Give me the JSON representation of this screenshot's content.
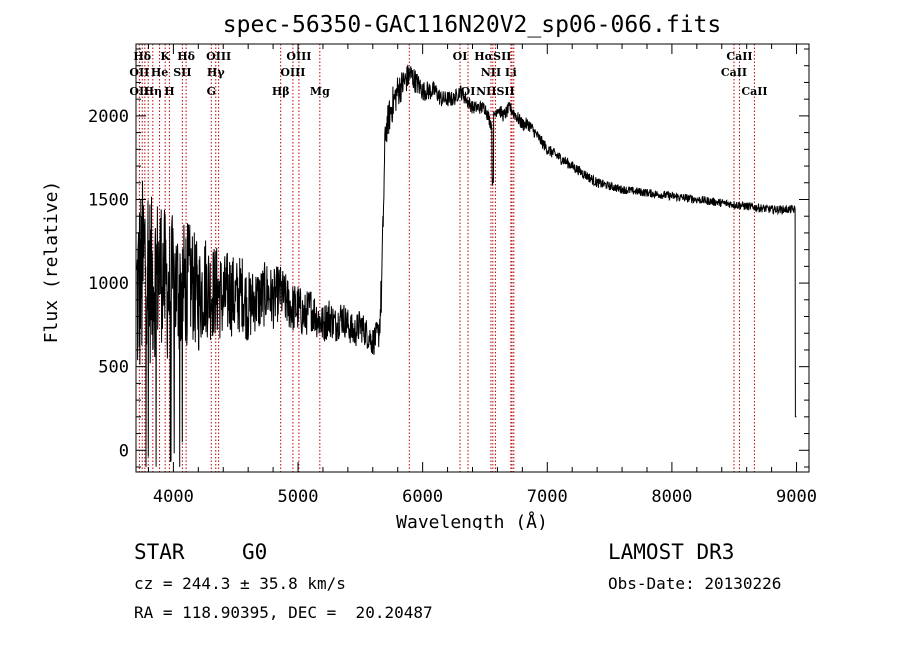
{
  "chart_data": {
    "type": "line",
    "title": "spec-56350-GAC116N20V2_sp06-066.fits",
    "xlabel": "Wavelength (Å)",
    "ylabel": "Flux (relative)",
    "xlim": [
      3700,
      9100
    ],
    "ylim": [
      -130,
      2430
    ],
    "xticks": [
      "4000",
      "5000",
      "6000",
      "7000",
      "8000",
      "9000"
    ],
    "xtick_values": [
      4000,
      5000,
      6000,
      7000,
      8000,
      9000
    ],
    "yticks": [
      "0",
      "500",
      "1000",
      "1500",
      "2000"
    ],
    "ytick_values": [
      0,
      500,
      1000,
      1500,
      2000
    ],
    "series": [
      {
        "name": "flux",
        "envelope_x": [
          3700,
          3740,
          3780,
          3820,
          3860,
          3900,
          3950,
          4000,
          4050,
          4100,
          4150,
          4200,
          4250,
          4300,
          4350,
          4400,
          4450,
          4500,
          4550,
          4600,
          4650,
          4700,
          4750,
          4800,
          4850,
          4900,
          4950,
          5000,
          5050,
          5100,
          5150,
          5200,
          5250,
          5300,
          5350,
          5400,
          5450,
          5500,
          5550,
          5600,
          5650,
          5670,
          5700,
          5750,
          5800,
          5850,
          5900,
          5950,
          6000,
          6050,
          6100,
          6150,
          6200,
          6250,
          6300,
          6350,
          6400,
          6450,
          6500,
          6550,
          6600,
          6650,
          6700,
          6750,
          6800,
          6850,
          6900,
          6950,
          7000,
          7100,
          7200,
          7300,
          7400,
          7500,
          7600,
          7700,
          7800,
          7900,
          8000,
          8100,
          8200,
          8300,
          8400,
          8500,
          8600,
          8700,
          8800,
          8900,
          8950,
          9000
        ],
        "envelope_y": [
          900,
          1000,
          1200,
          1000,
          1050,
          1100,
          950,
          1000,
          950,
          1000,
          1000,
          900,
          1000,
          950,
          950,
          900,
          950,
          900,
          950,
          850,
          900,
          900,
          950,
          900,
          950,
          900,
          850,
          850,
          800,
          850,
          800,
          750,
          800,
          750,
          800,
          750,
          700,
          750,
          700,
          650,
          700,
          950,
          1900,
          2050,
          2150,
          2200,
          2250,
          2200,
          2150,
          2150,
          2150,
          2100,
          2100,
          2100,
          2150,
          2100,
          2050,
          2050,
          2050,
          1950,
          2050,
          2000,
          2050,
          2000,
          1950,
          1950,
          1900,
          1850,
          1800,
          1750,
          1700,
          1650,
          1600,
          1580,
          1560,
          1550,
          1540,
          1530,
          1520,
          1510,
          1500,
          1490,
          1480,
          1470,
          1460,
          1450,
          1440,
          1440,
          1440,
          1440
        ],
        "noise": [
          600,
          600,
          550,
          520,
          480,
          450,
          430,
          420,
          400,
          380,
          350,
          330,
          320,
          300,
          280,
          270,
          260,
          250,
          230,
          220,
          200,
          200,
          190,
          180,
          170,
          160,
          150,
          150,
          140,
          130,
          130,
          120,
          120,
          110,
          110,
          100,
          100,
          100,
          90,
          90,
          90,
          150,
          100,
          110,
          100,
          90,
          80,
          70,
          60,
          60,
          55,
          50,
          50,
          45,
          45,
          45,
          40,
          40,
          40,
          40,
          40,
          40,
          40,
          40,
          40,
          40,
          35,
          35,
          35,
          35,
          30,
          30,
          30,
          25,
          25,
          25,
          25,
          25,
          25,
          25,
          25,
          25,
          25,
          25,
          25,
          25,
          25,
          25,
          25,
          25
        ]
      }
    ],
    "spectral_lines": [
      {
        "label": "Hδ",
        "wavelength": 3750,
        "row": 0
      },
      {
        "label": "K",
        "wavelength": 3934,
        "row": 0
      },
      {
        "label": "Hδ",
        "wavelength": 4102,
        "row": 0
      },
      {
        "label": "OIII",
        "wavelength": 4363,
        "row": 0
      },
      {
        "label": "OIII",
        "wavelength": 5007,
        "row": 0
      },
      {
        "label": "OI",
        "wavelength": 6300,
        "row": 0
      },
      {
        "label": "HαSII",
        "wavelength": 6563,
        "row": 0
      },
      {
        "label": "CaII",
        "wavelength": 8542,
        "row": 0
      },
      {
        "label": "OII",
        "wavelength": 3727,
        "row": 1
      },
      {
        "label": "He",
        "wavelength": 3889,
        "row": 1
      },
      {
        "label": "SII",
        "wavelength": 4072,
        "row": 1
      },
      {
        "label": "Hγ",
        "wavelength": 4340,
        "row": 1
      },
      {
        "label": "OIII",
        "wavelength": 4959,
        "row": 1
      },
      {
        "label": "NII",
        "wavelength": 6548,
        "row": 1
      },
      {
        "label": "Li",
        "wavelength": 6708,
        "row": 1
      },
      {
        "label": "CaII",
        "wavelength": 8498,
        "row": 1
      },
      {
        "label": "OII",
        "wavelength": 3727,
        "row": 2
      },
      {
        "label": "Hη",
        "wavelength": 3835,
        "row": 2
      },
      {
        "label": "H",
        "wavelength": 3968,
        "row": 2
      },
      {
        "label": "G",
        "wavelength": 4304,
        "row": 2
      },
      {
        "label": "Hβ",
        "wavelength": 4861,
        "row": 2
      },
      {
        "label": "Mg",
        "wavelength": 5175,
        "row": 2
      },
      {
        "label": "OI",
        "wavelength": 6364,
        "row": 2
      },
      {
        "label": "NIISII",
        "wavelength": 6584,
        "row": 2
      },
      {
        "label": "CaII",
        "wavelength": 8662,
        "row": 2
      }
    ],
    "line_marker_wavelengths": [
      3727,
      3750,
      3771,
      3798,
      3835,
      3889,
      3934,
      3968,
      4072,
      4102,
      4304,
      4340,
      4363,
      4861,
      4959,
      5007,
      5175,
      5893,
      6300,
      6364,
      6548,
      6563,
      6584,
      6708,
      6717,
      6731,
      8498,
      8542,
      8662
    ]
  },
  "info": {
    "class": "STAR",
    "subclass": "G0",
    "cz": "cz = 244.3 ± 35.8 km/s",
    "coords": "RA = 118.90395, DEC =  20.20487",
    "survey": "LAMOST DR3",
    "obs_date": "Obs-Date: 20130226"
  }
}
